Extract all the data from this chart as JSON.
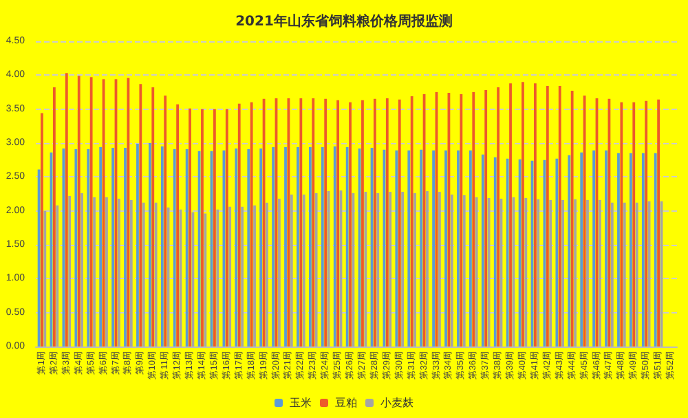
{
  "chart_data": {
    "type": "bar",
    "title": "2021年山东省饲料粮价格周报监测",
    "categories": [
      "第1周",
      "第2周",
      "第3周",
      "第4周",
      "第5周",
      "第6周",
      "第7周",
      "第8周",
      "第9周",
      "第10周",
      "第11周",
      "第12周",
      "第13周",
      "第14周",
      "第15周",
      "第16周",
      "第17周",
      "第18周",
      "第19周",
      "第20周",
      "第21周",
      "第22周",
      "第23周",
      "第24周",
      "第25周",
      "第26周",
      "第27周",
      "第28周",
      "第29周",
      "第30周",
      "第31周",
      "第32周",
      "第33周",
      "第34周",
      "第35周",
      "第36周",
      "第37周",
      "第38周",
      "第39周",
      "第40周",
      "第41周",
      "第42周",
      "第43周",
      "第44周",
      "第45周",
      "第46周",
      "第47周",
      "第48周",
      "第49周",
      "第50周",
      "第51周",
      "第52周"
    ],
    "series": [
      {
        "name": "玉米",
        "color": "#5b9bd5",
        "values": [
          2.61,
          2.86,
          2.92,
          2.91,
          2.91,
          2.94,
          2.93,
          2.93,
          2.99,
          3.0,
          2.95,
          2.91,
          2.91,
          2.88,
          2.88,
          2.89,
          2.92,
          2.91,
          2.92,
          2.94,
          2.94,
          2.94,
          2.94,
          2.94,
          2.95,
          2.94,
          2.92,
          2.93,
          2.9,
          2.89,
          2.89,
          2.9,
          2.89,
          2.89,
          2.89,
          2.89,
          2.83,
          2.79,
          2.77,
          2.76,
          2.74,
          2.75,
          2.77,
          2.82,
          2.86,
          2.89,
          2.89,
          2.85,
          2.85,
          2.85,
          2.85,
          null
        ]
      },
      {
        "name": "豆粕",
        "color": "#ed5a2a",
        "values": [
          3.44,
          3.82,
          4.03,
          3.99,
          3.97,
          3.94,
          3.94,
          3.96,
          3.87,
          3.82,
          3.7,
          3.57,
          3.51,
          3.5,
          3.5,
          3.5,
          3.58,
          3.6,
          3.65,
          3.66,
          3.66,
          3.66,
          3.66,
          3.65,
          3.63,
          3.6,
          3.63,
          3.65,
          3.66,
          3.64,
          3.69,
          3.72,
          3.75,
          3.74,
          3.72,
          3.75,
          3.78,
          3.82,
          3.88,
          3.9,
          3.88,
          3.84,
          3.84,
          3.77,
          3.7,
          3.66,
          3.65,
          3.6,
          3.6,
          3.62,
          3.64,
          null
        ]
      },
      {
        "name": "小麦麸",
        "color": "#a5a5a5",
        "values": [
          2.0,
          2.08,
          2.22,
          2.26,
          2.2,
          2.2,
          2.18,
          2.16,
          2.12,
          2.12,
          2.05,
          2.02,
          1.98,
          1.96,
          2.02,
          2.06,
          2.06,
          2.08,
          2.12,
          2.18,
          2.24,
          2.24,
          2.26,
          2.29,
          2.3,
          2.26,
          2.28,
          2.26,
          2.28,
          2.28,
          2.26,
          2.29,
          2.28,
          2.24,
          2.23,
          2.2,
          2.19,
          2.18,
          2.2,
          2.19,
          2.17,
          2.16,
          2.16,
          2.17,
          2.16,
          2.16,
          2.12,
          2.12,
          2.12,
          2.14,
          2.14,
          null
        ]
      }
    ],
    "ylim": [
      0,
      4.5
    ],
    "yticks": [
      {
        "value": 0,
        "label": "0.00"
      },
      {
        "value": 0.5,
        "label": "0.50"
      },
      {
        "value": 1,
        "label": "1.00"
      },
      {
        "value": 1.5,
        "label": "1.50"
      },
      {
        "value": 2,
        "label": "2.00"
      },
      {
        "value": 2.5,
        "label": "2.50"
      },
      {
        "value": 3,
        "label": "3.00"
      },
      {
        "value": 3.5,
        "label": "3.50"
      },
      {
        "value": 4,
        "label": "4.00"
      },
      {
        "value": 4.5,
        "label": "4.50"
      }
    ],
    "grid": "y",
    "legend": "bottom"
  }
}
